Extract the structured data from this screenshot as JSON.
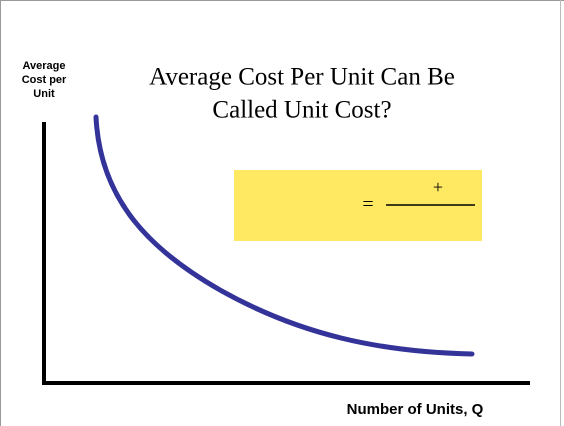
{
  "title": {
    "lines": [
      "Average Cost Per Unit Can Be",
      "Called Unit Cost?"
    ]
  },
  "y_axis_label": {
    "lines": [
      "Average",
      "Cost per",
      "Unit"
    ]
  },
  "x_axis_label": "Number of Units, Q",
  "formula": {
    "equals": "=",
    "plus": "+"
  }
}
